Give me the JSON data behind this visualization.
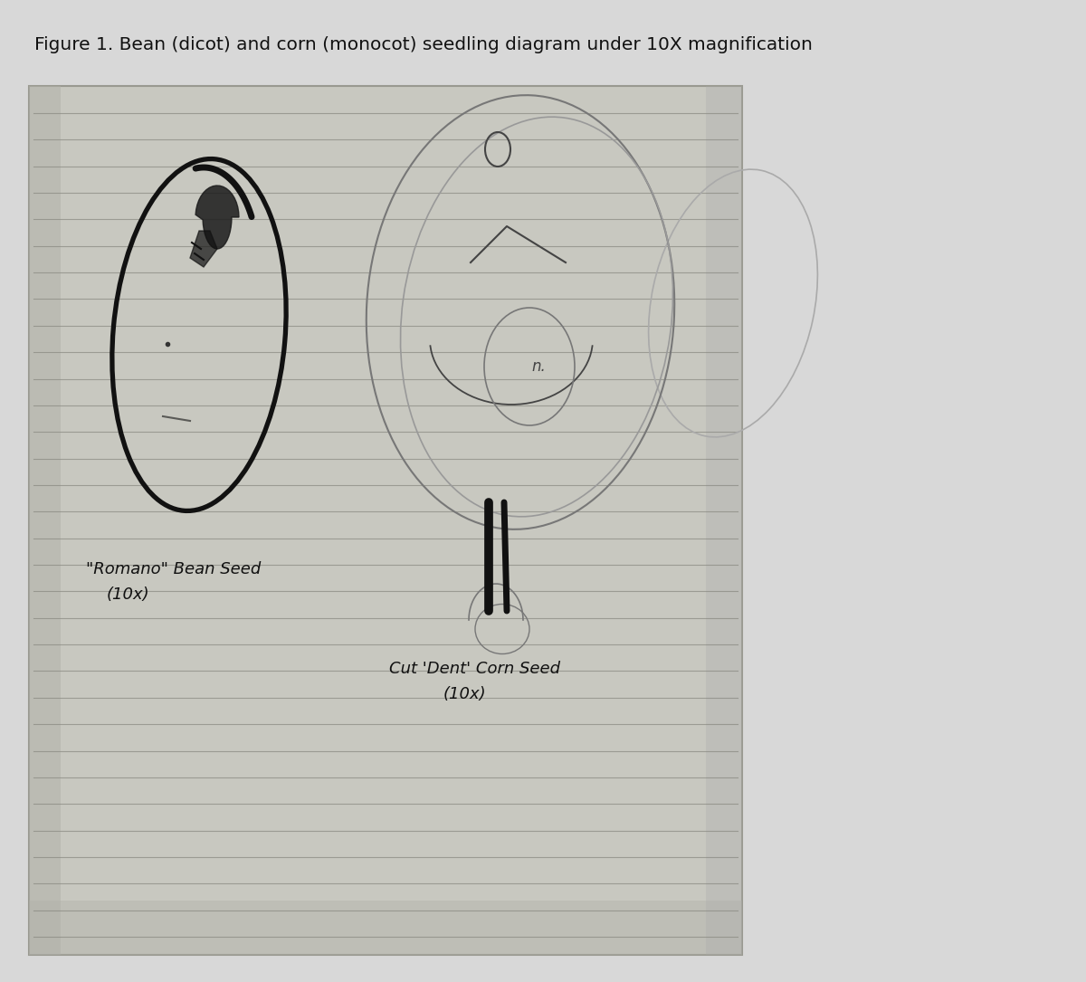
{
  "title": "Figure 1. Bean (dicot) and corn (monocot) seedling diagram under 10X magnification",
  "title_fontsize": 14.5,
  "bg_color": "#d8d8d8",
  "paper_color": "#d0cfc8",
  "paper_color2": "#c8c7be",
  "line_color": "#888880",
  "sketch_color": "#111111",
  "sketch_color_med": "#444444",
  "sketch_color_light": "#777777",
  "bean_label_line1": "\"Romano\" Bean Seed",
  "bean_label_line2": "(10x)",
  "corn_label_line1": "Cut 'Dent' Corn Seed",
  "corn_label_line2": "(10x)"
}
